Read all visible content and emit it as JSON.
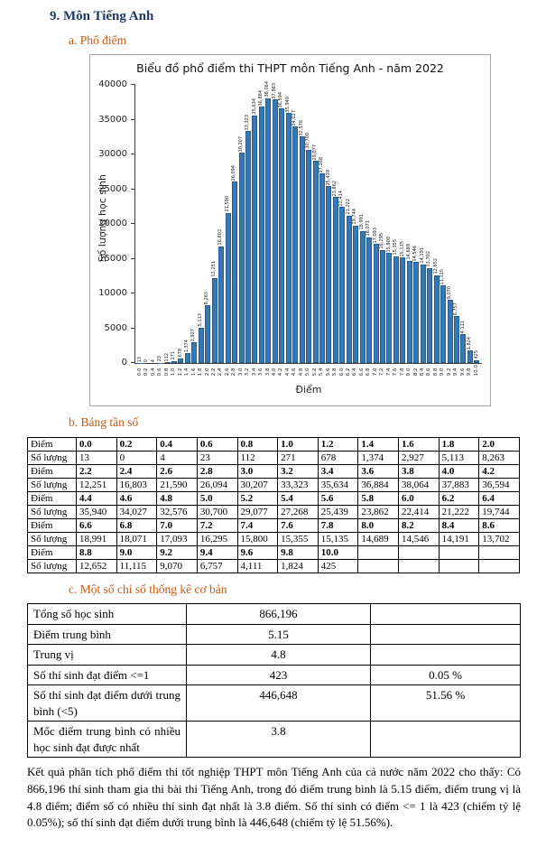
{
  "page": {
    "title": "9. Môn Tiếng Anh",
    "section_a": "a. Phổ điểm",
    "section_b": "b. Bảng tần số",
    "section_c": "c. Một số chỉ số thống kê cơ bản",
    "footer_text": "Kết quả phân tích phổ điểm thi tốt nghiệp THPT môn Tiếng Anh của cả nước năm 2022 cho thấy: Có 866,196 thí sinh tham gia thi bài thi Tiếng Anh, trong đó điểm trung bình là 5.15 điểm, điểm trung vị là 4.8 điểm; điểm số có nhiều thí sinh đạt nhất là 3.8 điểm. Số thí sinh có điểm <= 1 là 423 (chiếm tỷ lệ 0.05%); số thí sinh đạt điểm dưới trung bình là 446,648 (chiếm tỷ lệ 51.56%).",
    "colors": {
      "title": "#1F3864",
      "section_heading": "#C55A11",
      "bar_fill": "#3778B4",
      "bar_edge": "#1F4E79"
    }
  },
  "chart_data": {
    "type": "bar",
    "title": "Biểu đồ phổ điểm thi THPT môn Tiếng Anh - năm 2022",
    "xlabel": "Điểm",
    "ylabel": "Số lượng học sinh",
    "ylim": [
      0,
      40000
    ],
    "ytick_step": 5000,
    "grid": false,
    "legend": "none",
    "bar_labels_rotated": true,
    "categories": [
      "0.0",
      "0.2",
      "0.4",
      "0.6",
      "0.8",
      "1.0",
      "1.2",
      "1.4",
      "1.6",
      "1.8",
      "2.0",
      "2.2",
      "2.4",
      "2.6",
      "2.8",
      "3.0",
      "3.2",
      "3.4",
      "3.6",
      "3.8",
      "4.0",
      "4.2",
      "4.4",
      "4.6",
      "4.8",
      "5.0",
      "5.2",
      "5.4",
      "5.6",
      "5.8",
      "6.0",
      "6.2",
      "6.4",
      "6.6",
      "6.8",
      "7.0",
      "7.2",
      "7.4",
      "7.6",
      "7.8",
      "8.0",
      "8.2",
      "8.4",
      "8.6",
      "8.8",
      "9.0",
      "9.2",
      "9.4",
      "9.6",
      "9.8",
      "10.0"
    ],
    "values": [
      13,
      0,
      4,
      23,
      112,
      271,
      678,
      1374,
      2927,
      5113,
      8263,
      12251,
      16803,
      21590,
      26094,
      30207,
      33323,
      35634,
      36884,
      38064,
      37883,
      36594,
      35940,
      34027,
      32576,
      30700,
      29077,
      27268,
      25439,
      23862,
      22414,
      21222,
      19744,
      18991,
      18071,
      17093,
      16295,
      15800,
      15355,
      15135,
      14689,
      14546,
      14191,
      13702,
      12652,
      11115,
      9070,
      6757,
      4111,
      1824,
      425
    ]
  },
  "freq_table": {
    "rows": [
      {
        "label": "Điểm",
        "cells": [
          "0.0",
          "0.2",
          "0.4",
          "0.6",
          "0.8",
          "1.0",
          "1.2",
          "1.4",
          "1.6",
          "1.8",
          "2.0"
        ]
      },
      {
        "label": "Số lượng",
        "cells": [
          "13",
          "0",
          "4",
          "23",
          "112",
          "271",
          "678",
          "1,374",
          "2,927",
          "5,113",
          "8,263"
        ]
      },
      {
        "label": "Điểm",
        "cells": [
          "2.2",
          "2.4",
          "2.6",
          "2.8",
          "3.0",
          "3.2",
          "3.4",
          "3.6",
          "3.8",
          "4.0",
          "4.2"
        ]
      },
      {
        "label": "Số lượng",
        "cells": [
          "12,251",
          "16,803",
          "21,590",
          "26,094",
          "30,207",
          "33,323",
          "35,634",
          "36,884",
          "38,064",
          "37,883",
          "36,594"
        ]
      },
      {
        "label": "Điểm",
        "cells": [
          "4.4",
          "4.6",
          "4.8",
          "5.0",
          "5.2",
          "5.4",
          "5.6",
          "5.8",
          "6.0",
          "6.2",
          "6.4"
        ]
      },
      {
        "label": "Số lượng",
        "cells": [
          "35,940",
          "34,027",
          "32,576",
          "30,700",
          "29,077",
          "27,268",
          "25,439",
          "23,862",
          "22,414",
          "21,222",
          "19,744"
        ]
      },
      {
        "label": "Điểm",
        "cells": [
          "6.6",
          "6.8",
          "7.0",
          "7.2",
          "7.4",
          "7.6",
          "7.8",
          "8.0",
          "8.2",
          "8.4",
          "8.6"
        ]
      },
      {
        "label": "Số lượng",
        "cells": [
          "18,991",
          "18,071",
          "17,093",
          "16,295",
          "15,800",
          "15,355",
          "15,135",
          "14,689",
          "14,546",
          "14,191",
          "13,702"
        ]
      },
      {
        "label": "Điểm",
        "cells": [
          "8.8",
          "9.0",
          "9.2",
          "9.4",
          "9.6",
          "9.8",
          "10.0",
          "",
          "",
          "",
          ""
        ]
      },
      {
        "label": "Số lượng",
        "cells": [
          "12,652",
          "11,115",
          "9,070",
          "6,757",
          "4,111",
          "1,824",
          "425",
          "",
          "",
          "",
          ""
        ]
      }
    ]
  },
  "stats_table": {
    "rows": [
      {
        "label": "Tổng số học sinh",
        "value": "866,196",
        "pct": ""
      },
      {
        "label": "Điểm trung bình",
        "value": "5.15",
        "pct": ""
      },
      {
        "label": "Trung vị",
        "value": "4.8",
        "pct": ""
      },
      {
        "label": "Số thí sinh đạt điểm <=1",
        "value": "423",
        "pct": "0.05 %"
      },
      {
        "label": "Số thí sinh đạt điểm dưới trung bình (<5)",
        "value": "446,648",
        "pct": "51.56 %"
      },
      {
        "label": "Mốc điểm trung bình có nhiều học sinh đạt được nhất",
        "value": "3.8",
        "pct": ""
      }
    ]
  }
}
